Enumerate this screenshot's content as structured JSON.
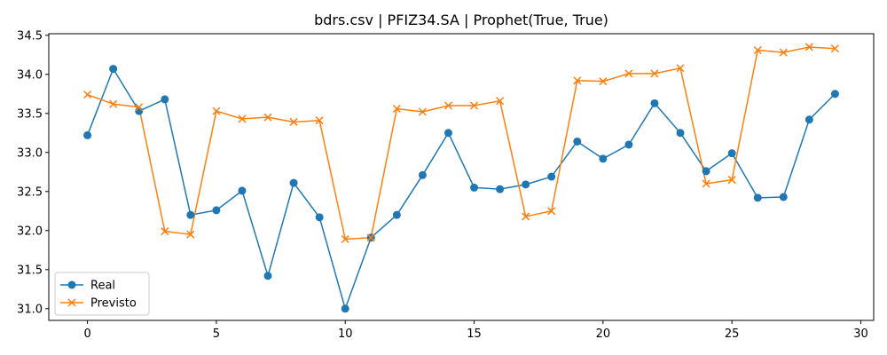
{
  "chart_data": {
    "type": "line",
    "title": "bdrs.csv | PFIZ34.SA | Prophet(True, True)",
    "xlabel": "",
    "ylabel": "",
    "xlim": [
      -1.5,
      30.5
    ],
    "ylim": [
      30.85,
      34.52
    ],
    "xticks": [
      0,
      5,
      10,
      15,
      20,
      25,
      30
    ],
    "yticks": [
      31.0,
      31.5,
      32.0,
      32.5,
      33.0,
      33.5,
      34.0,
      34.5
    ],
    "xtick_labels": [
      "0",
      "5",
      "10",
      "15",
      "20",
      "25",
      "30"
    ],
    "ytick_labels": [
      "31.0",
      "31.5",
      "32.0",
      "32.5",
      "33.0",
      "33.5",
      "34.0",
      "34.5"
    ],
    "grid": false,
    "legend_position": "lower-left",
    "x": [
      0,
      1,
      2,
      3,
      4,
      5,
      6,
      7,
      8,
      9,
      10,
      11,
      12,
      13,
      14,
      15,
      16,
      17,
      18,
      19,
      20,
      21,
      22,
      23,
      24,
      25,
      26,
      27,
      28,
      29
    ],
    "series": [
      {
        "name": "Real",
        "color": "#1f77b4",
        "marker": "circle",
        "values": [
          33.22,
          34.07,
          33.53,
          33.68,
          32.2,
          32.26,
          32.51,
          31.42,
          32.61,
          32.17,
          31.0,
          31.91,
          32.2,
          32.71,
          33.25,
          32.55,
          32.53,
          32.59,
          32.69,
          33.14,
          32.92,
          33.1,
          33.63,
          33.25,
          32.76,
          32.99,
          32.42,
          32.43,
          33.42,
          33.75
        ]
      },
      {
        "name": "Previsto",
        "color": "#ff7f0e",
        "marker": "x",
        "values": [
          33.74,
          33.62,
          33.58,
          31.99,
          31.95,
          33.53,
          33.43,
          33.45,
          33.39,
          33.41,
          31.89,
          31.91,
          33.56,
          33.52,
          33.6,
          33.6,
          33.66,
          32.18,
          32.25,
          33.92,
          33.91,
          34.01,
          34.01,
          34.08,
          32.6,
          32.65,
          34.31,
          34.28,
          34.35,
          34.33
        ]
      }
    ]
  }
}
